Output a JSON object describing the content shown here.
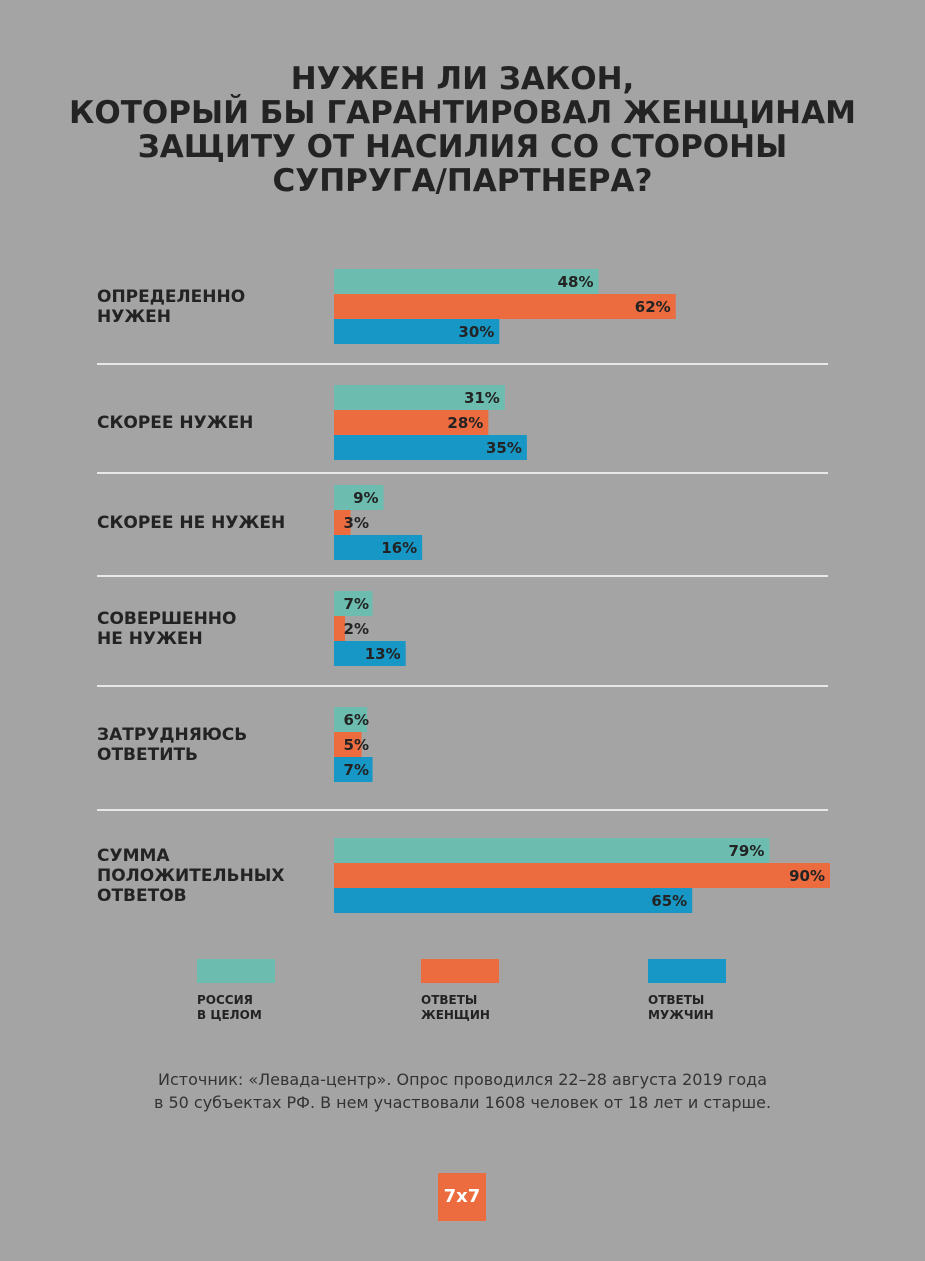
{
  "chart_data": {
    "type": "bar",
    "orientation": "horizontal",
    "title": "НУЖЕН ЛИ ЗАКОН,\nКОТОРЫЙ БЫ ГАРАНТИРОВАЛ ЖЕНЩИНАМ\nЗАЩИТУ ОТ НАСИЛИЯ СО СТОРОНЫ\nСУПРУГА/ПАРТНЕРА?",
    "categories": [
      "ОПРЕДЕЛЕННО\nНУЖЕН",
      "СКОРЕЕ НУЖЕН",
      "СКОРЕЕ НЕ НУЖЕН",
      "СОВЕРШЕННО\nНЕ НУЖЕН",
      "ЗАТРУДНЯЮСЬ\nОТВЕТИТЬ",
      "СУММА\nПОЛОЖИТЕЛЬНЫХ\nОТВЕТОВ"
    ],
    "series": [
      {
        "name": "РОССИЯ\nВ ЦЕЛОМ",
        "color": "#6cbdb0",
        "values": [
          48,
          31,
          9,
          7,
          6,
          79
        ],
        "value_labels": [
          "48%",
          "31%",
          "9%",
          "7%",
          "6%",
          "79%"
        ]
      },
      {
        "name": "ОТВЕТЫ\nЖЕНЩИН",
        "color": "#ec6b3f",
        "values": [
          62,
          28,
          3,
          2,
          5,
          90
        ],
        "value_labels": [
          "62%",
          "28%",
          "3%",
          "2%",
          "5%",
          "90%"
        ]
      },
      {
        "name": "ОТВЕТЫ\nМУЖЧИН",
        "color": "#1797c6",
        "values": [
          30,
          35,
          16,
          13,
          7,
          65
        ],
        "value_labels": [
          "30%",
          "35%",
          "16%",
          "13%",
          "7%",
          "65%"
        ]
      }
    ],
    "xlim": [
      0,
      90
    ]
  },
  "source": "Источник: «Левада-центр». Опрос проводился 22–28 августа 2019 года\nв 50 субъектах РФ. В нем участвовали 1608 человек от 18 лет и старше.",
  "logo": "7x7"
}
